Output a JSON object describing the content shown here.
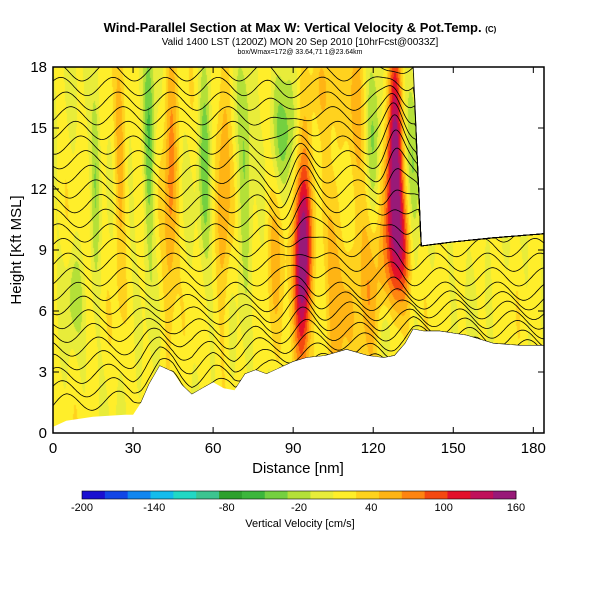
{
  "chart_data": {
    "type": "heatmap",
    "title": "Wind-Parallel Section at Max W: Vertical Velocity & Pot.Temp.",
    "title_mark": "(C)",
    "subtitle": "Valid 1400 LST (1200Z) MON 20 Sep 2010 [10hrFcst@0033Z]",
    "subtitle2": "box/Wmax=172@ 33.64,71 1@23.64km",
    "xlabel": "Distance [nm]",
    "ylabel": "Height [Kft MSL]",
    "xlim": [
      0,
      184
    ],
    "ylim": [
      0,
      18
    ],
    "xticks": [
      "0",
      "30",
      "60",
      "90",
      "120",
      "150",
      "180"
    ],
    "yticks": [
      "0",
      "3",
      "6",
      "9",
      "12",
      "15",
      "18"
    ],
    "colorbar": {
      "label": "Vertical Velocity [cm/s]",
      "ticks": [
        "-200",
        "-140",
        "-80",
        "-20",
        "40",
        "100",
        "160"
      ],
      "levels": [
        -200,
        -180,
        -160,
        -140,
        -120,
        -100,
        -80,
        -60,
        -40,
        -20,
        0,
        20,
        40,
        60,
        80,
        100,
        120,
        140,
        160
      ],
      "colors": [
        "#1a10d0",
        "#1246e6",
        "#1186f0",
        "#14bcec",
        "#22d8c4",
        "#3cc490",
        "#2ea02e",
        "#3cb63c",
        "#74d040",
        "#b4e038",
        "#e8ec3a",
        "#ffee2a",
        "#ffd21e",
        "#ffb414",
        "#ff8410",
        "#f44810",
        "#e2102a",
        "#c0105a",
        "#981a78"
      ]
    },
    "terrain_kft": [
      [
        0,
        0.3
      ],
      [
        5,
        0.6
      ],
      [
        15,
        0.8
      ],
      [
        27,
        0.9
      ],
      [
        30,
        0.9
      ],
      [
        33,
        1.5
      ],
      [
        36,
        2.4
      ],
      [
        40,
        3.3
      ],
      [
        45,
        3.0
      ],
      [
        48,
        2.4
      ],
      [
        52,
        1.9
      ],
      [
        56,
        2.2
      ],
      [
        60,
        2.5
      ],
      [
        64,
        2.2
      ],
      [
        68,
        2.1
      ],
      [
        72,
        2.9
      ],
      [
        76,
        3.1
      ],
      [
        80,
        2.9
      ],
      [
        85,
        3.2
      ],
      [
        90,
        3.5
      ],
      [
        95,
        3.7
      ],
      [
        102,
        3.8
      ],
      [
        110,
        4.1
      ],
      [
        118,
        3.8
      ],
      [
        124,
        3.7
      ],
      [
        128,
        3.8
      ],
      [
        132,
        4.4
      ],
      [
        135,
        5.1
      ],
      [
        139,
        5.0
      ],
      [
        145,
        5.0
      ],
      [
        155,
        4.8
      ],
      [
        165,
        4.4
      ],
      [
        175,
        4.3
      ],
      [
        184,
        4.3
      ]
    ],
    "data_top_kft": [
      [
        0,
        18
      ],
      [
        135,
        18
      ],
      [
        138,
        9.2
      ],
      [
        150,
        9.4
      ],
      [
        165,
        9.6
      ],
      [
        184,
        9.8
      ]
    ],
    "updrafts": [
      {
        "x": 93.5,
        "y": 8.3,
        "sx": 2.2,
        "sy": 3.6,
        "value": 172
      },
      {
        "x": 128,
        "y": 13.8,
        "sx": 2.0,
        "sy": 4.2,
        "value": 150
      },
      {
        "x": 131,
        "y": 8.8,
        "sx": 3.2,
        "sy": 2.2,
        "value": 85
      },
      {
        "x": 107,
        "y": 7.5,
        "sx": 3.5,
        "sy": 4.5,
        "value": 55
      },
      {
        "x": 120,
        "y": 8.0,
        "sx": 4.0,
        "sy": 3.5,
        "value": 60
      },
      {
        "x": 84,
        "y": 10.5,
        "sx": 2.5,
        "sy": 3.0,
        "value": 60
      },
      {
        "x": 44,
        "y": 12.5,
        "sx": 1.8,
        "sy": 5.0,
        "value": 65
      },
      {
        "x": 64,
        "y": 12.5,
        "sx": 1.8,
        "sy": 5.0,
        "value": 55
      },
      {
        "x": 25,
        "y": 12.5,
        "sx": 1.5,
        "sy": 4.0,
        "value": 45
      },
      {
        "x": 100,
        "y": 17.0,
        "sx": 5.0,
        "sy": 1.6,
        "value": 40
      },
      {
        "x": 113,
        "y": 14.5,
        "sx": 2.5,
        "sy": 3.5,
        "value": 45
      }
    ],
    "downdrafts": [
      {
        "x": 86,
        "y": 14.6,
        "sx": 3.2,
        "sy": 2.6,
        "value": -75
      },
      {
        "x": 120,
        "y": 13.5,
        "sx": 2.2,
        "sy": 3.5,
        "value": -55
      },
      {
        "x": 135,
        "y": 12.5,
        "sx": 2.0,
        "sy": 4.0,
        "value": -50
      },
      {
        "x": 110,
        "y": 11.0,
        "sx": 2.0,
        "sy": 3.0,
        "value": -45
      },
      {
        "x": 57,
        "y": 14.0,
        "sx": 1.6,
        "sy": 3.8,
        "value": -55
      },
      {
        "x": 72,
        "y": 13.0,
        "sx": 2.0,
        "sy": 4.0,
        "value": -45
      },
      {
        "x": 36,
        "y": 14.0,
        "sx": 1.5,
        "sy": 4.0,
        "value": -60
      },
      {
        "x": 16,
        "y": 13.0,
        "sx": 1.2,
        "sy": 4.0,
        "value": -40
      },
      {
        "x": 125,
        "y": 5.0,
        "sx": 2.0,
        "sy": 1.2,
        "value": -40
      },
      {
        "x": 8,
        "y": 6.8,
        "sx": 2.0,
        "sy": 1.5,
        "value": -35
      }
    ]
  }
}
